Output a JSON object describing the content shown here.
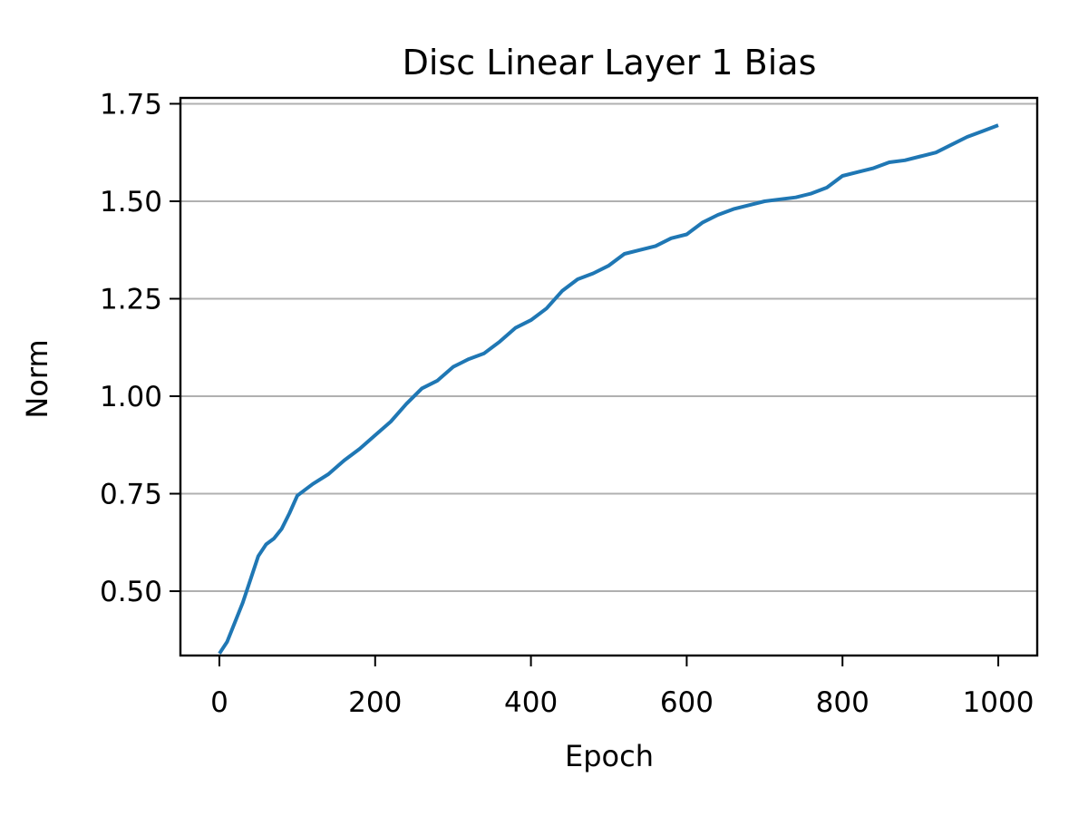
{
  "chart_data": {
    "type": "line",
    "title": "Disc Linear Layer 1 Bias",
    "xlabel": "Epoch",
    "ylabel": "Norm",
    "xlim": [
      -50,
      1050
    ],
    "ylim": [
      0.335,
      1.765
    ],
    "x_ticks": [
      0,
      200,
      400,
      600,
      800,
      1000
    ],
    "x_tick_labels": [
      "0",
      "200",
      "400",
      "600",
      "800",
      "1000"
    ],
    "y_ticks": [
      0.5,
      0.75,
      1.0,
      1.25,
      1.5,
      1.75
    ],
    "y_tick_labels": [
      "0.50",
      "0.75",
      "1.00",
      "1.25",
      "1.50",
      "1.75"
    ],
    "grid": "y-axis only",
    "legend": "none",
    "series": [
      {
        "color": "#1f77b4",
        "x": [
          0,
          10,
          20,
          30,
          40,
          50,
          60,
          70,
          80,
          90,
          100,
          110,
          120,
          140,
          160,
          180,
          200,
          220,
          240,
          260,
          280,
          300,
          320,
          340,
          360,
          380,
          400,
          420,
          440,
          460,
          480,
          500,
          520,
          540,
          560,
          580,
          600,
          620,
          640,
          660,
          680,
          700,
          720,
          740,
          760,
          780,
          800,
          820,
          840,
          860,
          880,
          900,
          920,
          940,
          960,
          980,
          1000
        ],
        "y": [
          0.34,
          0.37,
          0.42,
          0.47,
          0.53,
          0.59,
          0.62,
          0.635,
          0.66,
          0.7,
          0.745,
          0.76,
          0.775,
          0.8,
          0.835,
          0.865,
          0.9,
          0.935,
          0.98,
          1.02,
          1.04,
          1.075,
          1.095,
          1.11,
          1.14,
          1.175,
          1.195,
          1.225,
          1.27,
          1.3,
          1.315,
          1.335,
          1.365,
          1.375,
          1.385,
          1.405,
          1.415,
          1.445,
          1.465,
          1.48,
          1.49,
          1.5,
          1.505,
          1.51,
          1.52,
          1.535,
          1.565,
          1.575,
          1.585,
          1.6,
          1.605,
          1.615,
          1.625,
          1.645,
          1.665,
          1.68,
          1.695
        ]
      }
    ]
  }
}
